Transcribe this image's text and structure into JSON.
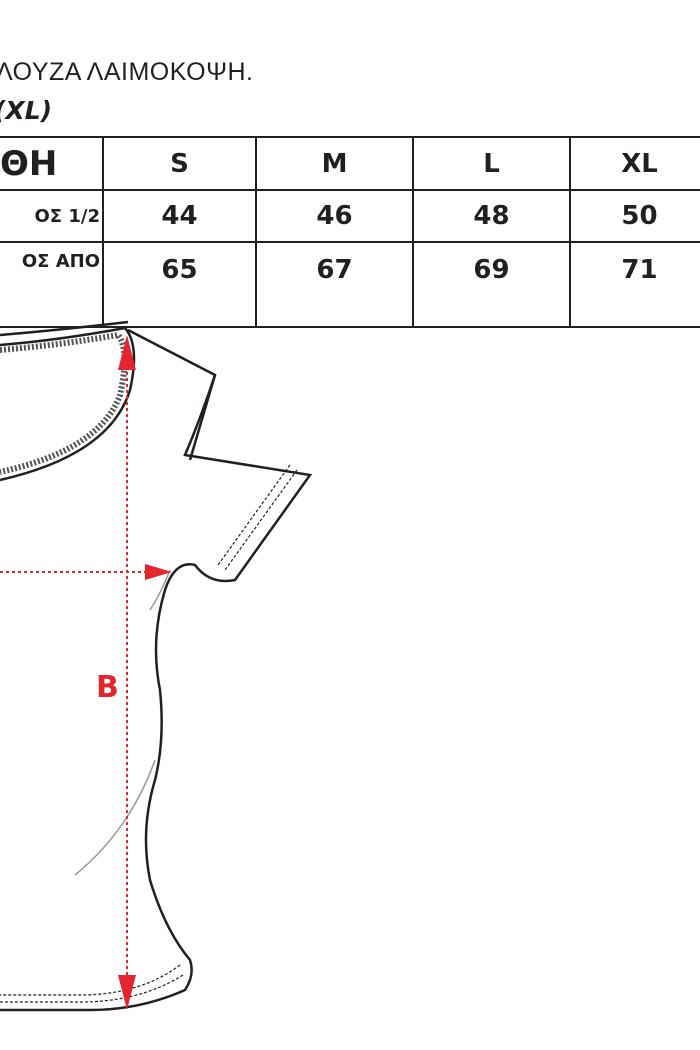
{
  "title": "ΛΟΥΖΑ ΛΑΙΜΟΚΟΨΗ.",
  "subtitle": "(XL)",
  "table": {
    "header": [
      "ΘΗ",
      "S",
      "M",
      "L",
      "XL"
    ],
    "rows": [
      [
        "ΟΣ 1/2",
        "44",
        "46",
        "48",
        "50"
      ],
      [
        "ΟΣ ΑΠΟ",
        "65",
        "67",
        "69",
        "71"
      ]
    ]
  },
  "diagram": {
    "measure_label": "B",
    "accent": "#e3262d"
  }
}
